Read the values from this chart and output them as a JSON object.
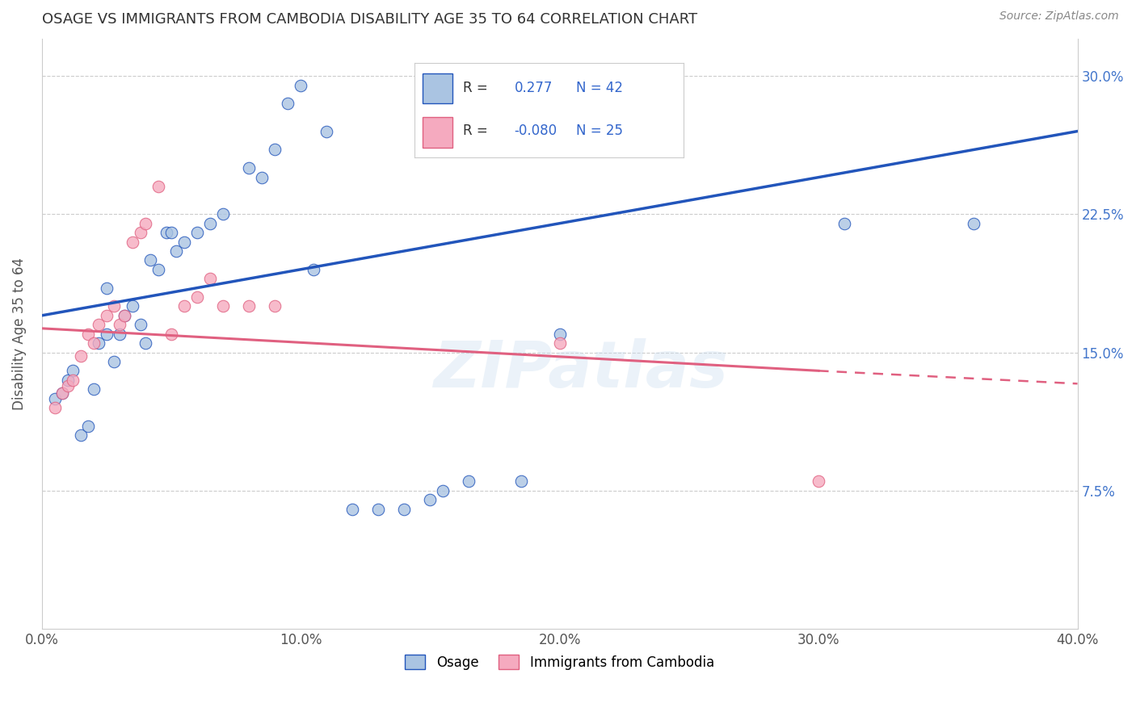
{
  "title": "OSAGE VS IMMIGRANTS FROM CAMBODIA DISABILITY AGE 35 TO 64 CORRELATION CHART",
  "source": "Source: ZipAtlas.com",
  "ylabel": "Disability Age 35 to 64",
  "xlim": [
    0.0,
    0.4
  ],
  "ylim": [
    0.0,
    0.32
  ],
  "xticks": [
    0.0,
    0.1,
    0.2,
    0.3,
    0.4
  ],
  "yticks": [
    0.075,
    0.15,
    0.225,
    0.3
  ],
  "xtick_labels": [
    "0.0%",
    "10.0%",
    "20.0%",
    "30.0%",
    "40.0%"
  ],
  "ytick_labels": [
    "7.5%",
    "15.0%",
    "22.5%",
    "30.0%"
  ],
  "blue_R": 0.277,
  "blue_N": 42,
  "pink_R": -0.08,
  "pink_N": 25,
  "blue_color": "#aac4e2",
  "pink_color": "#f5aabf",
  "blue_line_color": "#2255bb",
  "pink_line_color": "#e06080",
  "watermark": "ZIPatlas",
  "legend_label_blue": "Osage",
  "legend_label_pink": "Immigrants from Cambodia",
  "blue_line_x0": 0.0,
  "blue_line_y0": 0.17,
  "blue_line_x1": 0.4,
  "blue_line_y1": 0.27,
  "pink_line_x0": 0.0,
  "pink_line_y0": 0.163,
  "pink_line_x1_solid": 0.3,
  "pink_line_y1_solid": 0.14,
  "pink_line_x1_dash": 0.4,
  "pink_line_y1_dash": 0.133,
  "blue_scatter_x": [
    0.005,
    0.008,
    0.01,
    0.012,
    0.015,
    0.018,
    0.02,
    0.022,
    0.025,
    0.025,
    0.028,
    0.03,
    0.032,
    0.035,
    0.038,
    0.04,
    0.042,
    0.045,
    0.048,
    0.05,
    0.052,
    0.055,
    0.06,
    0.065,
    0.07,
    0.08,
    0.085,
    0.09,
    0.095,
    0.1,
    0.105,
    0.11,
    0.12,
    0.13,
    0.14,
    0.15,
    0.155,
    0.165,
    0.185,
    0.2,
    0.31,
    0.36
  ],
  "blue_scatter_y": [
    0.125,
    0.128,
    0.135,
    0.14,
    0.105,
    0.11,
    0.13,
    0.155,
    0.16,
    0.185,
    0.145,
    0.16,
    0.17,
    0.175,
    0.165,
    0.155,
    0.2,
    0.195,
    0.215,
    0.215,
    0.205,
    0.21,
    0.215,
    0.22,
    0.225,
    0.25,
    0.245,
    0.26,
    0.285,
    0.295,
    0.195,
    0.27,
    0.065,
    0.065,
    0.065,
    0.07,
    0.075,
    0.08,
    0.08,
    0.16,
    0.22,
    0.22
  ],
  "pink_scatter_x": [
    0.005,
    0.008,
    0.01,
    0.012,
    0.015,
    0.018,
    0.02,
    0.022,
    0.025,
    0.028,
    0.03,
    0.032,
    0.035,
    0.038,
    0.04,
    0.045,
    0.05,
    0.055,
    0.06,
    0.065,
    0.07,
    0.08,
    0.09,
    0.2,
    0.3
  ],
  "pink_scatter_y": [
    0.12,
    0.128,
    0.132,
    0.135,
    0.148,
    0.16,
    0.155,
    0.165,
    0.17,
    0.175,
    0.165,
    0.17,
    0.21,
    0.215,
    0.22,
    0.24,
    0.16,
    0.175,
    0.18,
    0.19,
    0.175,
    0.175,
    0.175,
    0.155,
    0.08
  ]
}
